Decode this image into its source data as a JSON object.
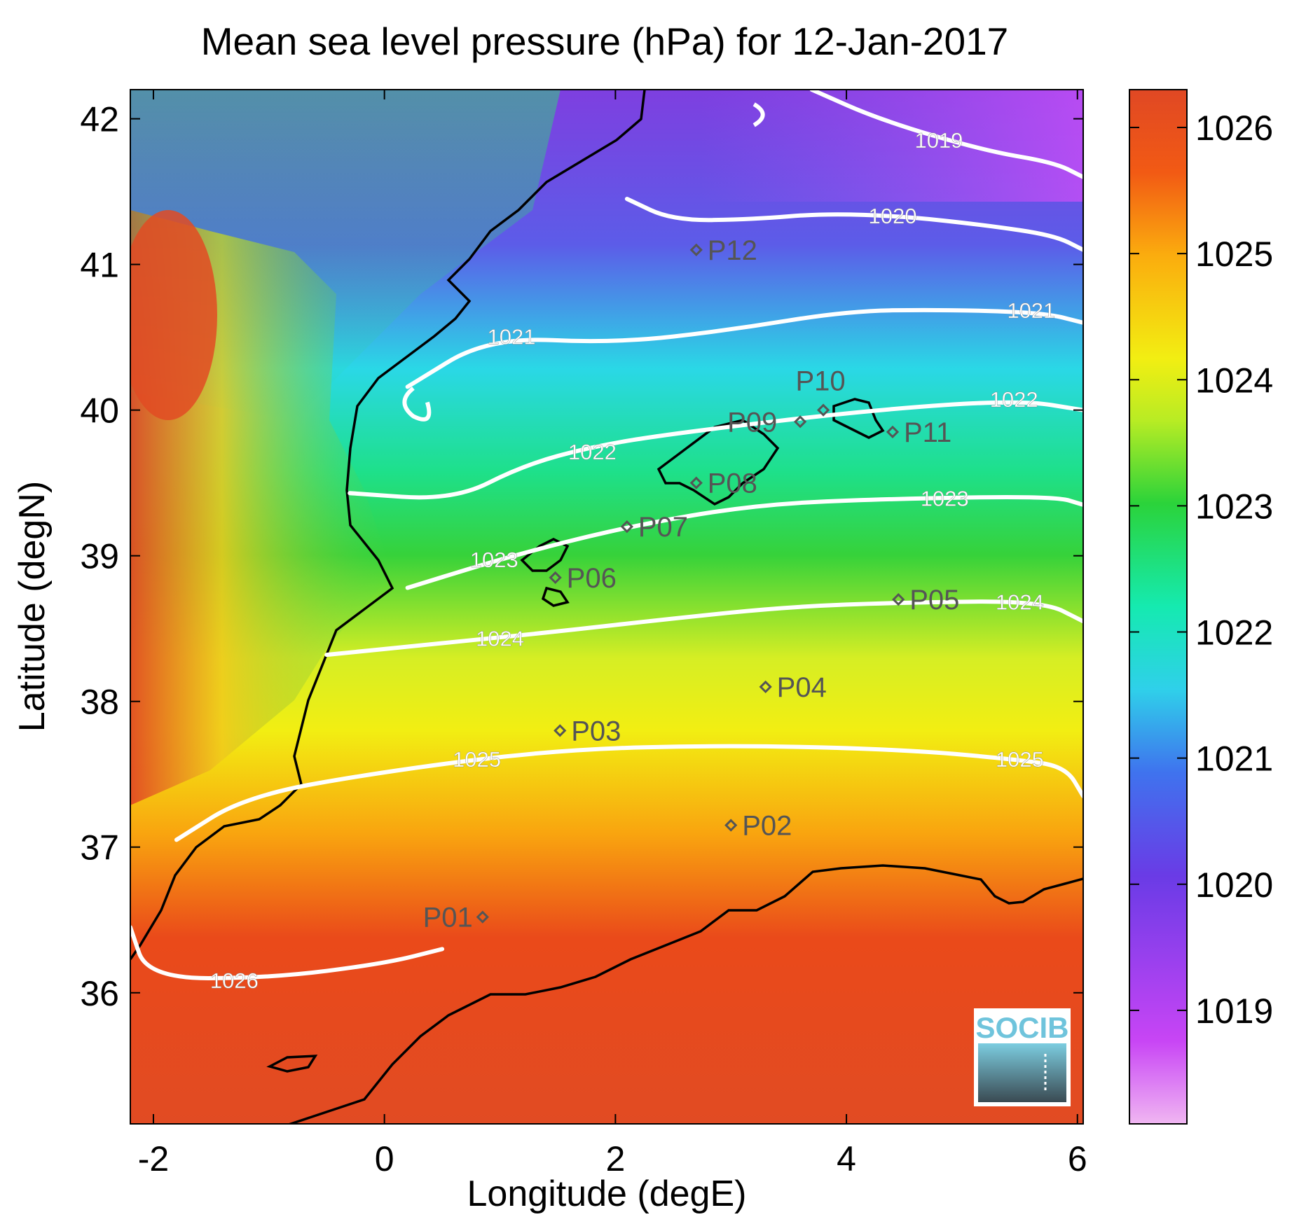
{
  "title": "Mean sea level pressure (hPa) for 12-Jan-2017",
  "xlabel": "Longitude (degE)",
  "ylabel": "Latitude (degN)",
  "xlim": [
    -2.2,
    6.05
  ],
  "ylim": [
    35.1,
    42.2
  ],
  "xticks": [
    -2,
    0,
    2,
    4,
    6
  ],
  "yticks": [
    36,
    37,
    38,
    39,
    40,
    41,
    42
  ],
  "colorbar": {
    "range": [
      1018.1,
      1026.3
    ],
    "ticks": [
      1019,
      1020,
      1021,
      1022,
      1023,
      1024,
      1025,
      1026
    ]
  },
  "contours": [
    {
      "level": "1019",
      "points": [
        [
          3.7,
          42.2
        ],
        [
          4.3,
          41.99
        ],
        [
          5.2,
          41.78
        ],
        [
          5.8,
          41.7
        ],
        [
          6.05,
          41.6
        ]
      ],
      "labels": [
        [
          4.8,
          41.85
        ]
      ]
    },
    {
      "level": "1020",
      "points": [
        [
          2.1,
          41.45
        ],
        [
          2.5,
          41.3
        ],
        [
          3.2,
          41.31
        ],
        [
          3.8,
          41.35
        ],
        [
          4.5,
          41.33
        ],
        [
          5.2,
          41.27
        ],
        [
          5.8,
          41.2
        ],
        [
          6.05,
          41.1
        ]
      ],
      "labels": [
        [
          4.4,
          41.33
        ]
      ]
    },
    {
      "level": "1021",
      "points": [
        [
          0.2,
          40.16
        ],
        [
          0.9,
          40.5
        ],
        [
          2.0,
          40.46
        ],
        [
          3.0,
          40.55
        ],
        [
          4.0,
          40.68
        ],
        [
          4.8,
          40.69
        ],
        [
          5.7,
          40.67
        ],
        [
          6.05,
          40.6
        ]
      ],
      "labels": [
        [
          1.1,
          40.5
        ],
        [
          5.6,
          40.68
        ]
      ]
    },
    {
      "level": "1022",
      "points": [
        [
          -0.3,
          39.43
        ],
        [
          0.6,
          39.38
        ],
        [
          1.2,
          39.62
        ],
        [
          1.8,
          39.75
        ],
        [
          2.5,
          39.84
        ],
        [
          4.2,
          40.0
        ],
        [
          5.5,
          40.07
        ],
        [
          6.05,
          40.0
        ]
      ],
      "labels": [
        [
          1.8,
          39.71
        ],
        [
          5.45,
          40.07
        ]
      ]
    },
    {
      "level": "1023",
      "points": [
        [
          0.2,
          38.78
        ],
        [
          1.1,
          39.0
        ],
        [
          2.1,
          39.2
        ],
        [
          3.2,
          39.35
        ],
        [
          4.3,
          39.39
        ],
        [
          5.8,
          39.41
        ],
        [
          6.05,
          39.35
        ]
      ],
      "labels": [
        [
          0.95,
          38.97
        ],
        [
          4.85,
          39.39
        ]
      ]
    },
    {
      "level": "1024",
      "points": [
        [
          -0.5,
          38.32
        ],
        [
          0.5,
          38.4
        ],
        [
          1.5,
          38.48
        ],
        [
          2.5,
          38.57
        ],
        [
          3.5,
          38.65
        ],
        [
          4.5,
          38.68
        ],
        [
          5.7,
          38.69
        ],
        [
          6.05,
          38.55
        ]
      ],
      "labels": [
        [
          1.0,
          38.43
        ],
        [
          5.5,
          38.68
        ]
      ]
    },
    {
      "level": "1025",
      "points": [
        [
          -1.8,
          37.05
        ],
        [
          -1.2,
          37.35
        ],
        [
          0,
          37.52
        ],
        [
          1.5,
          37.67
        ],
        [
          3,
          37.7
        ],
        [
          4.5,
          37.67
        ],
        [
          5.5,
          37.6
        ],
        [
          5.9,
          37.55
        ],
        [
          6.05,
          37.35
        ]
      ],
      "labels": [
        [
          0.8,
          37.6
        ],
        [
          5.5,
          37.6
        ]
      ]
    },
    {
      "level": "1026",
      "points": [
        [
          -2.2,
          36.45
        ],
        [
          -2.05,
          36.1
        ],
        [
          -1.0,
          36.1
        ],
        [
          0,
          36.2
        ],
        [
          0.5,
          36.3
        ]
      ],
      "labels": [
        [
          -1.3,
          36.08
        ]
      ]
    }
  ],
  "stations": [
    {
      "label": "P01",
      "lon": 0.85,
      "lat": 36.52
    },
    {
      "label": "P02",
      "lon": 3.0,
      "lat": 37.15
    },
    {
      "label": "P03",
      "lon": 1.52,
      "lat": 37.8
    },
    {
      "label": "P04",
      "lon": 3.3,
      "lat": 38.1
    },
    {
      "label": "P05",
      "lon": 4.45,
      "lat": 38.7
    },
    {
      "label": "P06",
      "lon": 1.48,
      "lat": 38.85
    },
    {
      "label": "P07",
      "lon": 2.1,
      "lat": 39.2
    },
    {
      "label": "P08",
      "lon": 2.7,
      "lat": 39.5
    },
    {
      "label": "P09",
      "lon": 3.6,
      "lat": 39.92
    },
    {
      "label": "P10",
      "lon": 3.8,
      "lat": 40.0
    },
    {
      "label": "P11",
      "lon": 4.4,
      "lat": 39.85
    },
    {
      "label": "P12",
      "lon": 2.7,
      "lat": 41.1
    }
  ],
  "logo": {
    "text": "SOCIB"
  },
  "colors": {
    "contour": "#ffffff",
    "coast": "#000000",
    "station_marker": "#555555"
  }
}
